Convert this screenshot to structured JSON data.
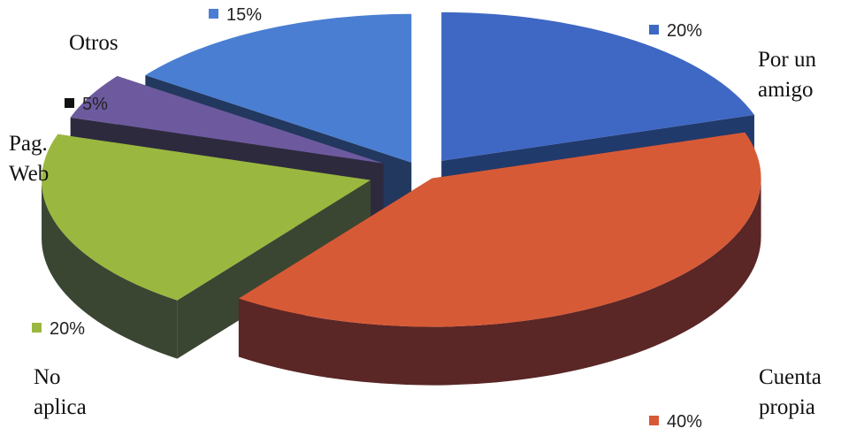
{
  "chart_data": {
    "type": "pie",
    "style": "3d-exploded",
    "slices": [
      {
        "label": "Por un amigo",
        "value": 20,
        "value_label": "20%",
        "color": "#3f67c4",
        "side_color": "#213a6c"
      },
      {
        "label": "Cuenta propia",
        "value": 40,
        "value_label": "40%",
        "color": "#d75a36",
        "side_color": "#5a2626"
      },
      {
        "label": "No aplica",
        "value": 20,
        "value_label": "20%",
        "color": "#9ab83f",
        "side_color": "#3b4632"
      },
      {
        "label": "Pag. Web",
        "value": 5,
        "value_label": "5%",
        "color": "#6d5a9e",
        "side_color": "#2d2a3e"
      },
      {
        "label": "Otros",
        "value": 15,
        "value_label": "15%",
        "color": "#4a7ed2",
        "side_color": "#22385e"
      }
    ],
    "legend": "none",
    "title": ""
  }
}
